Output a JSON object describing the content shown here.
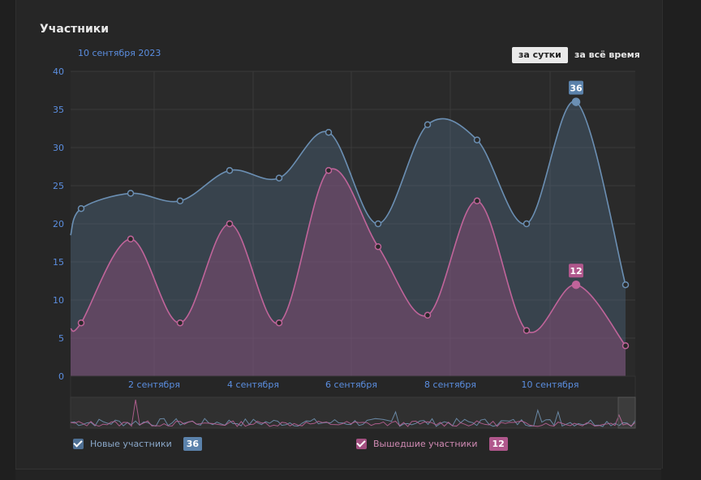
{
  "header": {
    "title": "Участники",
    "date": "10 сентября 2023"
  },
  "period_buttons": {
    "day": "за сутки",
    "all": "за всё время"
  },
  "colors": {
    "new": "#6b8fb3",
    "left": "#c0649a",
    "grid": "#3a3a3a",
    "axis_text": "#5b8ee0"
  },
  "legend": {
    "new_label": "Новые участники",
    "new_value": "36",
    "left_label": "Вышедшие участники",
    "left_value": "12"
  },
  "chart_data": {
    "type": "area",
    "ylim": [
      0,
      40
    ],
    "yticks": [
      "0",
      "5",
      "10",
      "15",
      "20",
      "25",
      "30",
      "35",
      "40"
    ],
    "x_tick_labels": [
      "2 сентября",
      "4 сентября",
      "6 сентября",
      "8 сентября",
      "10 сентября"
    ],
    "series": [
      {
        "name": "Новые участники",
        "values": [
          22,
          24,
          23,
          27,
          26,
          32,
          20,
          33,
          31,
          20,
          36,
          12
        ],
        "highlight": "36"
      },
      {
        "name": "Вышедшие участники",
        "values": [
          7,
          18,
          7,
          20,
          7,
          27,
          17,
          8,
          23,
          6,
          12,
          4
        ],
        "highlight": "12"
      }
    ]
  }
}
